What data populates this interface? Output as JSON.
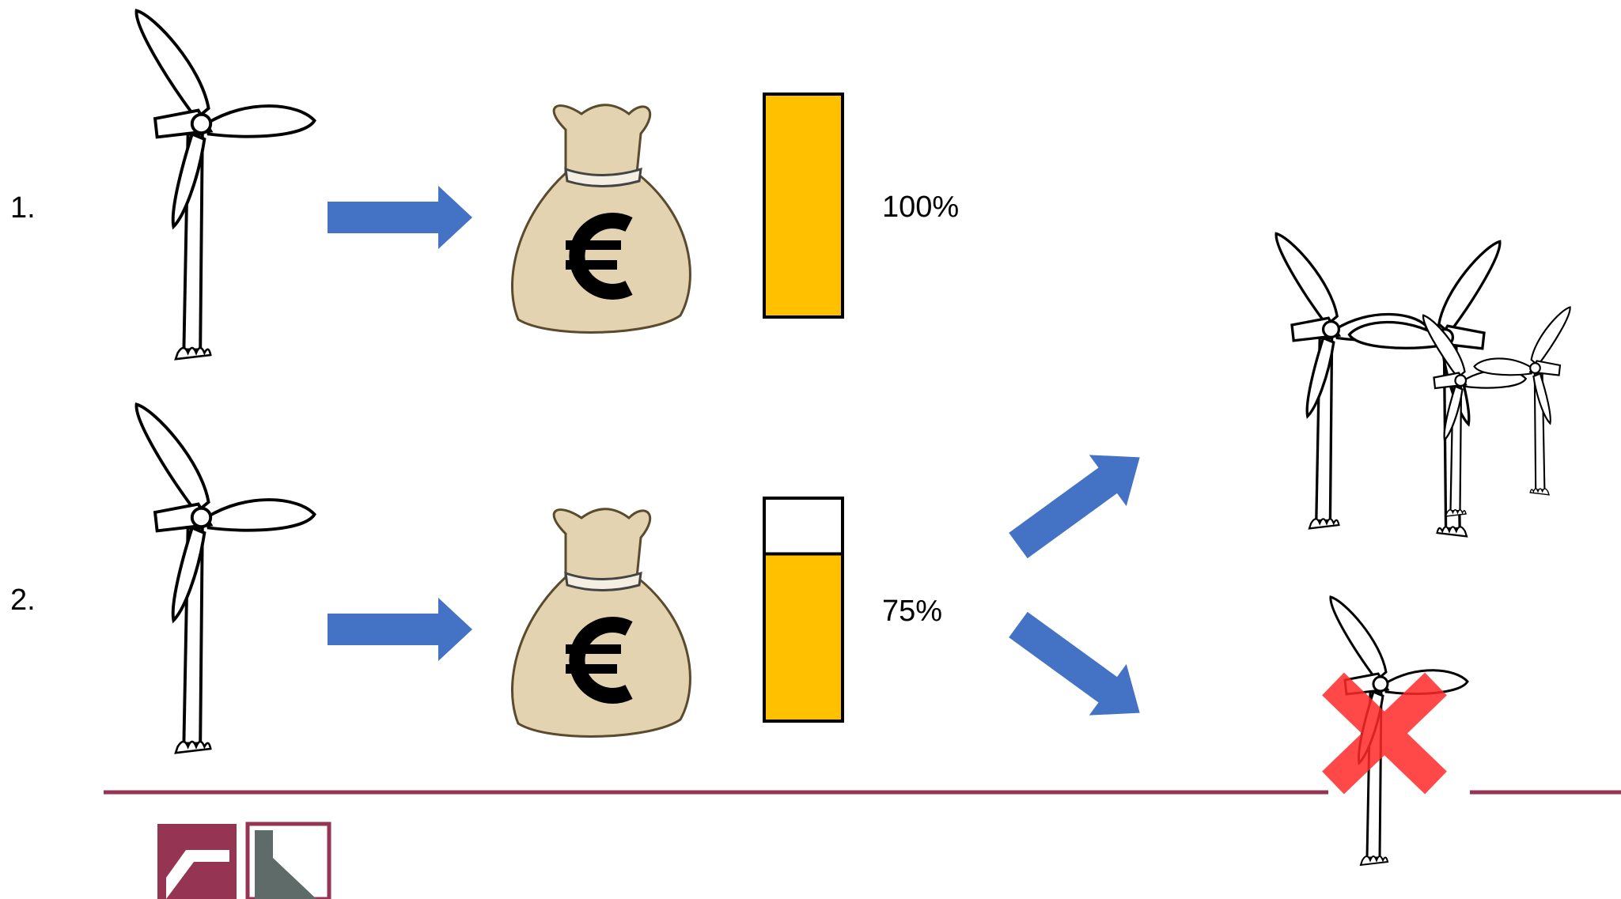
{
  "rows": [
    {
      "number": "1.",
      "share": {
        "value": 100,
        "label": "100%"
      }
    },
    {
      "number": "2.",
      "share": {
        "value": 75,
        "label": "75%"
      }
    }
  ]
}
